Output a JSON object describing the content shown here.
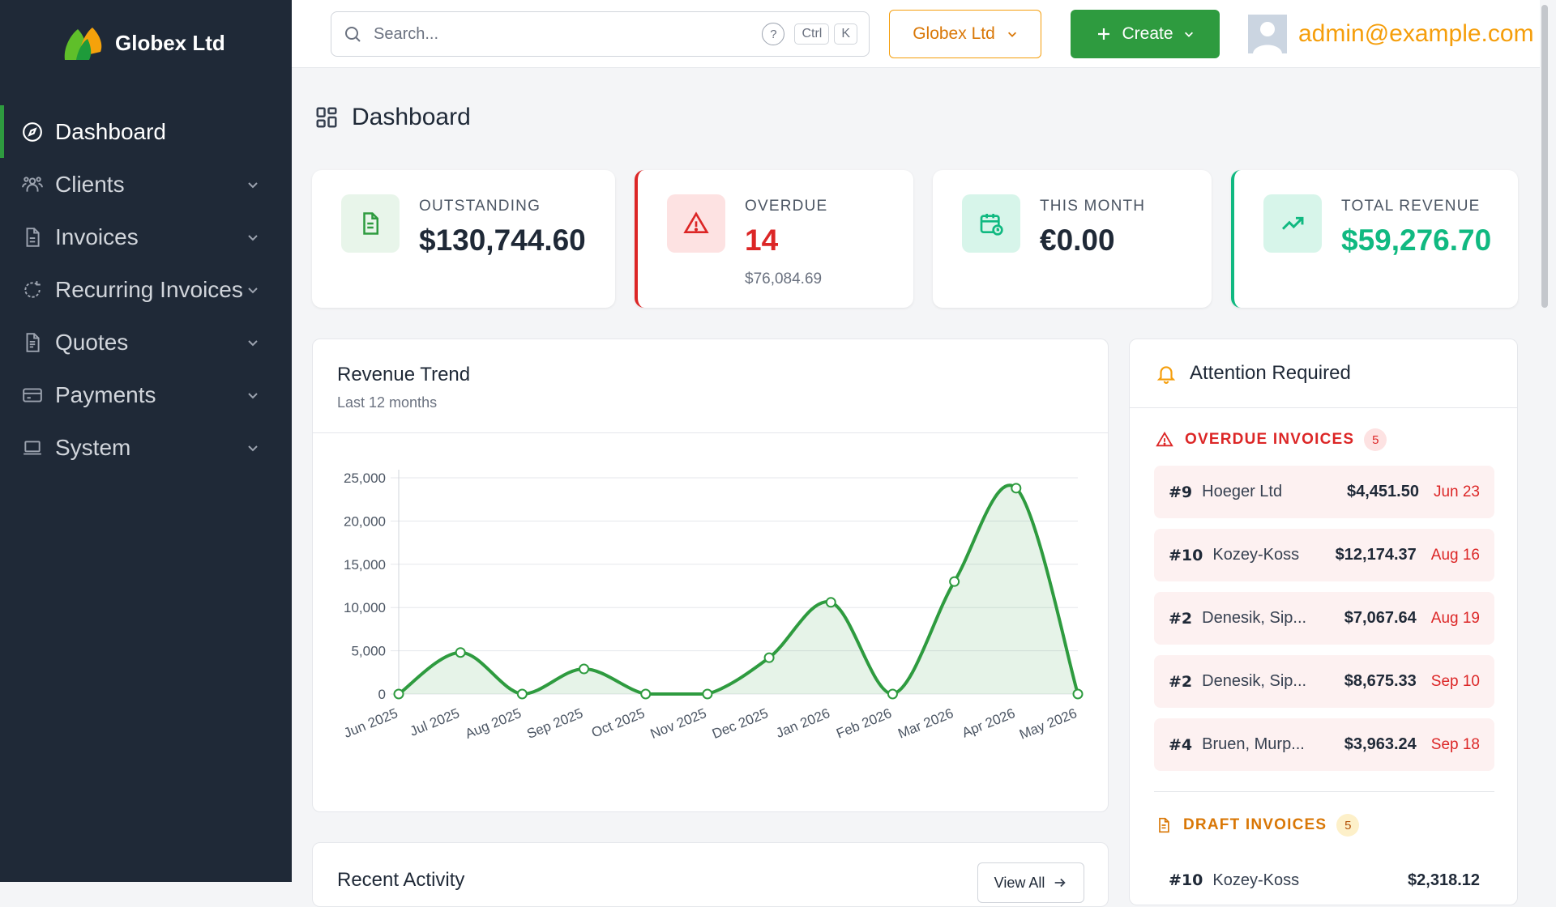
{
  "app": {
    "brand": "Globex Ltd"
  },
  "sidebar": {
    "items": [
      {
        "label": "Dashboard",
        "icon": "compass-icon",
        "active": true
      },
      {
        "label": "Clients",
        "icon": "users-icon"
      },
      {
        "label": "Invoices",
        "icon": "document-icon"
      },
      {
        "label": "Recurring Invoices",
        "icon": "refresh-icon"
      },
      {
        "label": "Quotes",
        "icon": "quote-document-icon"
      },
      {
        "label": "Payments",
        "icon": "credit-card-icon"
      },
      {
        "label": "System",
        "icon": "laptop-icon"
      }
    ]
  },
  "topbar": {
    "search_placeholder": "Search...",
    "shortcut_ctrl": "Ctrl",
    "shortcut_key": "K",
    "help_glyph": "?",
    "company": "Globex Ltd",
    "create_label": "Create",
    "user_email": "admin@example.com"
  },
  "page": {
    "title": "Dashboard"
  },
  "stats": {
    "outstanding": {
      "label": "OUTSTANDING",
      "value": "$130,744.60"
    },
    "overdue": {
      "label": "OVERDUE",
      "value": "14",
      "sub": "$76,084.69"
    },
    "this_month": {
      "label": "THIS MONTH",
      "value": "€0.00"
    },
    "total_revenue": {
      "label": "TOTAL REVENUE",
      "value": "$59,276.70"
    }
  },
  "colors": {
    "sidebar_bg": "#1f2937",
    "accent_green": "#2e9b3f",
    "danger_red": "#dc2626",
    "warning_amber": "#f59e0b",
    "revenue_teal": "#10b981"
  },
  "revenue_chart": {
    "title": "Revenue Trend",
    "subtitle": "Last 12 months"
  },
  "chart_data": {
    "type": "area",
    "categories": [
      "Jun 2025",
      "Jul 2025",
      "Aug 2025",
      "Sep 2025",
      "Oct 2025",
      "Nov 2025",
      "Dec 2025",
      "Jan 2026",
      "Feb 2026",
      "Mar 2026",
      "Apr 2026",
      "May 2026"
    ],
    "series": [
      {
        "values": [
          0,
          4800,
          0,
          2900,
          0,
          0,
          4200,
          10600,
          0,
          13000,
          23800,
          0
        ]
      }
    ],
    "ylim": [
      0,
      25000
    ],
    "yticks": [
      "0",
      "5,000",
      "10,000",
      "15,000",
      "20,000",
      "25,000"
    ],
    "grid": true,
    "line_color": "#2e9b3f"
  },
  "activity": {
    "title": "Recent Activity",
    "view_all": "View All"
  },
  "attention": {
    "title": "Attention Required",
    "overdue": {
      "title": "OVERDUE INVOICES",
      "count": "5",
      "rows": [
        {
          "number": "#9",
          "client": "Hoeger Ltd",
          "amount": "$4,451.50",
          "date": "Jun 23"
        },
        {
          "number": "#10",
          "client": "Kozey-Koss",
          "amount": "$12,174.37",
          "date": "Aug 16"
        },
        {
          "number": "#2",
          "client": "Denesik, Sip...",
          "amount": "$7,067.64",
          "date": "Aug 19"
        },
        {
          "number": "#2",
          "client": "Denesik, Sip...",
          "amount": "$8,675.33",
          "date": "Sep 10"
        },
        {
          "number": "#4",
          "client": "Bruen, Murp...",
          "amount": "$3,963.24",
          "date": "Sep 18"
        }
      ]
    },
    "drafts": {
      "title": "DRAFT INVOICES",
      "count": "5",
      "rows": [
        {
          "number": "#10",
          "client": "Kozey-Koss",
          "amount": "$2,318.12"
        }
      ]
    }
  }
}
